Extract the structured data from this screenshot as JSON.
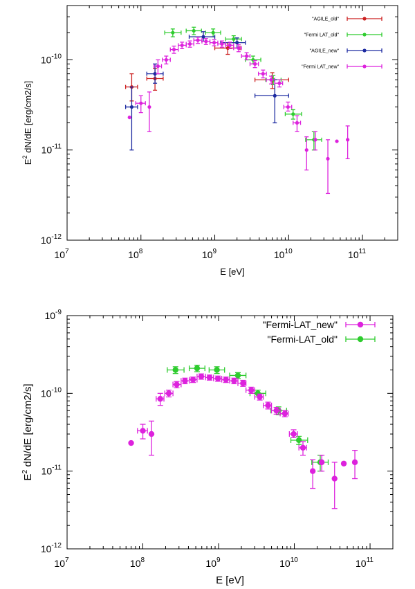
{
  "chart_data": [
    {
      "type": "scatter",
      "xscale": "log",
      "yscale": "log",
      "xlim": [
        10000000.0,
        300000000000.0
      ],
      "ylim": [
        1e-12,
        4e-10
      ],
      "xlabel": "E [eV]",
      "ylabel_base": "E",
      "ylabel_sup": "2",
      "ylabel_rest": " dN/dE [erg/cm2/s]",
      "xticks": [
        {
          "value": 10000000.0,
          "base": "10",
          "exp": "7"
        },
        {
          "value": 100000000.0,
          "base": "10",
          "exp": "8"
        },
        {
          "value": 1000000000.0,
          "base": "10",
          "exp": "9"
        },
        {
          "value": 10000000000.0,
          "base": "10",
          "exp": "10"
        },
        {
          "value": 100000000000.0,
          "base": "10",
          "exp": "11"
        }
      ],
      "yticks": [
        {
          "value": 1e-12,
          "base": "10",
          "exp": "-12"
        },
        {
          "value": 1e-11,
          "base": "10",
          "exp": "-11"
        },
        {
          "value": 1e-10,
          "base": "10",
          "exp": "-10"
        }
      ],
      "legend_position": "top-right",
      "series": [
        {
          "name": "\"AGILE_old\"",
          "color": "#cc2020",
          "points": [
            {
              "x": 75000000.0,
              "y": 5e-11,
              "xlo": 62000000.0,
              "xhi": 90000000.0,
              "ylo": 3.5e-11,
              "yhi": 7e-11
            },
            {
              "x": 155000000.0,
              "y": 6.2e-11,
              "xlo": 120000000.0,
              "xhi": 200000000.0,
              "ylo": 4.6e-11,
              "yhi": 8e-11
            },
            {
              "x": 1500000000.0,
              "y": 1.35e-10,
              "xlo": 1000000000.0,
              "xhi": 2200000000.0,
              "ylo": 1.15e-10,
              "yhi": 1.55e-10
            },
            {
              "x": 6000000000.0,
              "y": 6e-11,
              "xlo": 3500000000.0,
              "xhi": 10000000000.0,
              "ylo": 4.8e-11,
              "yhi": 7.2e-11
            }
          ]
        },
        {
          "name": "\"Fermi LAT_old\"",
          "color": "#2ecc2e",
          "points": [
            {
              "x": 270000000.0,
              "y": 2e-10,
              "xlo": 210000000.0,
              "xhi": 350000000.0,
              "ylo": 1.8e-10,
              "yhi": 2.2e-10
            },
            {
              "x": 520000000.0,
              "y": 2.1e-10,
              "xlo": 410000000.0,
              "xhi": 660000000.0,
              "ylo": 1.9e-10,
              "yhi": 2.3e-10
            },
            {
              "x": 950000000.0,
              "y": 2e-10,
              "xlo": 750000000.0,
              "xhi": 1200000000.0,
              "ylo": 1.8e-10,
              "yhi": 2.2e-10
            },
            {
              "x": 1800000000.0,
              "y": 1.7e-10,
              "xlo": 1400000000.0,
              "xhi": 2300000000.0,
              "ylo": 1.55e-10,
              "yhi": 1.85e-10
            },
            {
              "x": 3300000000.0,
              "y": 1e-10,
              "xlo": 2600000000.0,
              "xhi": 4200000000.0,
              "ylo": 9e-11,
              "yhi": 1.1e-10
            },
            {
              "x": 6200000000.0,
              "y": 6e-11,
              "xlo": 4900000000.0,
              "xhi": 7900000000.0,
              "ylo": 5.3e-11,
              "yhi": 6.7e-11
            },
            {
              "x": 11500000000.0,
              "y": 2.5e-11,
              "xlo": 9000000000.0,
              "xhi": 15000000000.0,
              "ylo": 2.2e-11,
              "yhi": 2.8e-11
            },
            {
              "x": 22000000000.0,
              "y": 1.3e-11,
              "xlo": 17000000000.0,
              "xhi": 28000000000.0,
              "ylo": 1e-11,
              "yhi": 1.6e-11
            }
          ]
        },
        {
          "name": "\"AGILE_new\"",
          "color": "#1c2aa0",
          "points": [
            {
              "x": 75000000.0,
              "y": 3e-11,
              "xlo": 62000000.0,
              "xhi": 90000000.0,
              "ylo": 1e-11,
              "yhi": 5e-11
            },
            {
              "x": 155000000.0,
              "y": 7e-11,
              "xlo": 120000000.0,
              "xhi": 200000000.0,
              "ylo": 5.5e-11,
              "yhi": 9e-11
            },
            {
              "x": 700000000.0,
              "y": 1.8e-10,
              "xlo": 450000000.0,
              "xhi": 1000000000.0,
              "ylo": 1.6e-10,
              "yhi": 2.05e-10
            },
            {
              "x": 2000000000.0,
              "y": 1.55e-10,
              "xlo": 1200000000.0,
              "xhi": 2600000000.0,
              "ylo": 1.35e-10,
              "yhi": 1.75e-10
            },
            {
              "x": 6500000000.0,
              "y": 4e-11,
              "xlo": 3500000000.0,
              "xhi": 10000000000.0,
              "ylo": 2e-11,
              "yhi": 6e-11
            }
          ]
        },
        {
          "name": "\"Fermi LAT_new\"",
          "color": "#dd22dd",
          "points": [
            {
              "x": 70000000.0,
              "y": 2.3e-11
            },
            {
              "x": 100000000.0,
              "y": 3.3e-11,
              "xlo": 85000000.0,
              "xhi": 115000000.0,
              "ylo": 2.6e-11,
              "yhi": 4e-11
            },
            {
              "x": 130000000.0,
              "y": 3e-11,
              "ylo": 1.6e-11,
              "yhi": 4.4e-11
            },
            {
              "x": 170000000.0,
              "y": 8.5e-11,
              "xlo": 150000000.0,
              "xhi": 190000000.0,
              "ylo": 7e-11,
              "yhi": 1e-10
            },
            {
              "x": 220000000.0,
              "y": 1e-10,
              "xlo": 195000000.0,
              "xhi": 250000000.0,
              "ylo": 9e-11,
              "yhi": 1.1e-10
            },
            {
              "x": 280000000.0,
              "y": 1.3e-10,
              "xlo": 250000000.0,
              "xhi": 320000000.0,
              "ylo": 1.18e-10,
              "yhi": 1.42e-10
            },
            {
              "x": 360000000.0,
              "y": 1.45e-10,
              "xlo": 320000000.0,
              "xhi": 410000000.0,
              "ylo": 1.33e-10,
              "yhi": 1.57e-10
            },
            {
              "x": 460000000.0,
              "y": 1.5e-10,
              "xlo": 410000000.0,
              "xhi": 520000000.0,
              "ylo": 1.38e-10,
              "yhi": 1.62e-10
            },
            {
              "x": 590000000.0,
              "y": 1.65e-10,
              "xlo": 520000000.0,
              "xhi": 670000000.0,
              "ylo": 1.52e-10,
              "yhi": 1.78e-10
            },
            {
              "x": 760000000.0,
              "y": 1.6e-10,
              "xlo": 670000000.0,
              "xhi": 860000000.0,
              "ylo": 1.48e-10,
              "yhi": 1.72e-10
            },
            {
              "x": 980000000.0,
              "y": 1.55e-10,
              "xlo": 860000000.0,
              "xhi": 1100000000.0,
              "ylo": 1.43e-10,
              "yhi": 1.67e-10
            },
            {
              "x": 1250000000.0,
              "y": 1.5e-10,
              "xlo": 1100000000.0,
              "xhi": 1400000000.0,
              "ylo": 1.38e-10,
              "yhi": 1.62e-10
            },
            {
              "x": 1600000000.0,
              "y": 1.45e-10,
              "xlo": 1400000000.0,
              "xhi": 1800000000.0,
              "ylo": 1.33e-10,
              "yhi": 1.57e-10
            },
            {
              "x": 2100000000.0,
              "y": 1.35e-10,
              "xlo": 1800000000.0,
              "xhi": 2300000000.0,
              "ylo": 1.23e-10,
              "yhi": 1.47e-10
            },
            {
              "x": 2700000000.0,
              "y": 1.1e-10,
              "xlo": 2300000000.0,
              "xhi": 3000000000.0,
              "ylo": 1e-10,
              "yhi": 1.2e-10
            },
            {
              "x": 3500000000.0,
              "y": 9e-11,
              "xlo": 3000000000.0,
              "xhi": 3900000000.0,
              "ylo": 8.2e-11,
              "yhi": 9.8e-11
            },
            {
              "x": 4500000000.0,
              "y": 7e-11,
              "xlo": 3900000000.0,
              "xhi": 5000000000.0,
              "ylo": 6.3e-11,
              "yhi": 7.7e-11
            },
            {
              "x": 5800000000.0,
              "y": 6e-11,
              "xlo": 5000000000.0,
              "xhi": 6500000000.0,
              "ylo": 5.4e-11,
              "yhi": 6.6e-11
            },
            {
              "x": 7500000000.0,
              "y": 5.5e-11,
              "xlo": 6500000000.0,
              "xhi": 8300000000.0,
              "ylo": 5e-11,
              "yhi": 6e-11
            },
            {
              "x": 9800000000.0,
              "y": 3e-11,
              "xlo": 8600000000.0,
              "xhi": 11000000000.0,
              "ylo": 2.7e-11,
              "yhi": 3.4e-11
            },
            {
              "x": 13000000000.0,
              "y": 2e-11,
              "xlo": 11500000000.0,
              "xhi": 14500000000.0,
              "ylo": 1.6e-11,
              "yhi": 2.4e-11
            },
            {
              "x": 17500000000.0,
              "y": 1e-11,
              "ylo": 6e-12,
              "yhi": 1.4e-11
            },
            {
              "x": 23000000000.0,
              "y": 1.3e-11,
              "ylo": 1e-11,
              "yhi": 1.6e-11
            },
            {
              "x": 34000000000.0,
              "y": 8e-12,
              "ylo": 3.3e-12,
              "yhi": 1.3e-11
            },
            {
              "x": 45000000000.0,
              "y": 1.25e-11
            },
            {
              "x": 63000000000.0,
              "y": 1.3e-11,
              "ylo": 8e-12,
              "yhi": 1.85e-11
            }
          ]
        }
      ]
    },
    {
      "type": "scatter",
      "xscale": "log",
      "yscale": "log",
      "xlim": [
        10000000.0,
        200000000000.0
      ],
      "ylim": [
        1e-12,
        1e-09
      ],
      "xlabel": "E [eV]",
      "ylabel_base": "E",
      "ylabel_sup": "2",
      "ylabel_rest": " dN/dE [erg/cm2/s]",
      "xticks": [
        {
          "value": 10000000.0,
          "base": "10",
          "exp": "7"
        },
        {
          "value": 100000000.0,
          "base": "10",
          "exp": "8"
        },
        {
          "value": 1000000000.0,
          "base": "10",
          "exp": "9"
        },
        {
          "value": 10000000000.0,
          "base": "10",
          "exp": "10"
        },
        {
          "value": 100000000000.0,
          "base": "10",
          "exp": "11"
        }
      ],
      "yticks": [
        {
          "value": 1e-12,
          "base": "10",
          "exp": "-12"
        },
        {
          "value": 1e-11,
          "base": "10",
          "exp": "-11"
        },
        {
          "value": 1e-10,
          "base": "10",
          "exp": "-10"
        },
        {
          "value": 1e-09,
          "base": "10",
          "exp": "-9"
        }
      ],
      "legend_position": "top-right",
      "series": [
        {
          "name": "\"Fermi-LAT_new\"",
          "color": "#dd22dd",
          "points": [
            {
              "x": 70000000.0,
              "y": 2.3e-11
            },
            {
              "x": 100000000.0,
              "y": 3.3e-11,
              "xlo": 85000000.0,
              "xhi": 115000000.0,
              "ylo": 2.6e-11,
              "yhi": 4e-11
            },
            {
              "x": 130000000.0,
              "y": 3e-11,
              "ylo": 1.6e-11,
              "yhi": 4.4e-11
            },
            {
              "x": 170000000.0,
              "y": 8.5e-11,
              "xlo": 150000000.0,
              "xhi": 190000000.0,
              "ylo": 7e-11,
              "yhi": 1e-10
            },
            {
              "x": 220000000.0,
              "y": 1e-10,
              "xlo": 195000000.0,
              "xhi": 250000000.0,
              "ylo": 9e-11,
              "yhi": 1.1e-10
            },
            {
              "x": 280000000.0,
              "y": 1.3e-10,
              "xlo": 250000000.0,
              "xhi": 320000000.0,
              "ylo": 1.18e-10,
              "yhi": 1.42e-10
            },
            {
              "x": 360000000.0,
              "y": 1.45e-10,
              "xlo": 320000000.0,
              "xhi": 410000000.0,
              "ylo": 1.33e-10,
              "yhi": 1.57e-10
            },
            {
              "x": 460000000.0,
              "y": 1.5e-10,
              "xlo": 410000000.0,
              "xhi": 520000000.0,
              "ylo": 1.38e-10,
              "yhi": 1.62e-10
            },
            {
              "x": 590000000.0,
              "y": 1.65e-10,
              "xlo": 520000000.0,
              "xhi": 670000000.0,
              "ylo": 1.52e-10,
              "yhi": 1.78e-10
            },
            {
              "x": 760000000.0,
              "y": 1.6e-10,
              "xlo": 670000000.0,
              "xhi": 860000000.0,
              "ylo": 1.48e-10,
              "yhi": 1.72e-10
            },
            {
              "x": 980000000.0,
              "y": 1.55e-10,
              "xlo": 860000000.0,
              "xhi": 1100000000.0,
              "ylo": 1.43e-10,
              "yhi": 1.67e-10
            },
            {
              "x": 1250000000.0,
              "y": 1.5e-10,
              "xlo": 1100000000.0,
              "xhi": 1400000000.0,
              "ylo": 1.38e-10,
              "yhi": 1.62e-10
            },
            {
              "x": 1600000000.0,
              "y": 1.45e-10,
              "xlo": 1400000000.0,
              "xhi": 1800000000.0,
              "ylo": 1.33e-10,
              "yhi": 1.57e-10
            },
            {
              "x": 2100000000.0,
              "y": 1.35e-10,
              "xlo": 1800000000.0,
              "xhi": 2300000000.0,
              "ylo": 1.23e-10,
              "yhi": 1.47e-10
            },
            {
              "x": 2700000000.0,
              "y": 1.1e-10,
              "xlo": 2300000000.0,
              "xhi": 3000000000.0,
              "ylo": 1e-10,
              "yhi": 1.2e-10
            },
            {
              "x": 3500000000.0,
              "y": 9e-11,
              "xlo": 3000000000.0,
              "xhi": 3900000000.0,
              "ylo": 8.2e-11,
              "yhi": 9.8e-11
            },
            {
              "x": 4500000000.0,
              "y": 7e-11,
              "xlo": 3900000000.0,
              "xhi": 5000000000.0,
              "ylo": 6.3e-11,
              "yhi": 7.7e-11
            },
            {
              "x": 5800000000.0,
              "y": 6e-11,
              "xlo": 5000000000.0,
              "xhi": 6500000000.0,
              "ylo": 5.4e-11,
              "yhi": 6.6e-11
            },
            {
              "x": 7500000000.0,
              "y": 5.5e-11,
              "xlo": 6500000000.0,
              "xhi": 8300000000.0,
              "ylo": 5e-11,
              "yhi": 6e-11
            },
            {
              "x": 9800000000.0,
              "y": 3e-11,
              "xlo": 8600000000.0,
              "xhi": 11000000000.0,
              "ylo": 2.7e-11,
              "yhi": 3.4e-11
            },
            {
              "x": 13000000000.0,
              "y": 2e-11,
              "xlo": 11500000000.0,
              "xhi": 14500000000.0,
              "ylo": 1.6e-11,
              "yhi": 2.4e-11
            },
            {
              "x": 17500000000.0,
              "y": 1e-11,
              "ylo": 6e-12,
              "yhi": 1.4e-11
            },
            {
              "x": 23000000000.0,
              "y": 1.3e-11,
              "ylo": 1e-11,
              "yhi": 1.6e-11
            },
            {
              "x": 34000000000.0,
              "y": 8e-12,
              "ylo": 3.3e-12,
              "yhi": 1.3e-11
            },
            {
              "x": 45000000000.0,
              "y": 1.25e-11
            },
            {
              "x": 63000000000.0,
              "y": 1.3e-11,
              "ylo": 8e-12,
              "yhi": 1.85e-11
            }
          ]
        },
        {
          "name": "\"Fermi-LAT_old\"",
          "color": "#2ecc2e",
          "points": [
            {
              "x": 270000000.0,
              "y": 2e-10,
              "xlo": 210000000.0,
              "xhi": 350000000.0,
              "ylo": 1.8e-10,
              "yhi": 2.2e-10
            },
            {
              "x": 520000000.0,
              "y": 2.1e-10,
              "xlo": 410000000.0,
              "xhi": 660000000.0,
              "ylo": 1.9e-10,
              "yhi": 2.3e-10
            },
            {
              "x": 950000000.0,
              "y": 2e-10,
              "xlo": 750000000.0,
              "xhi": 1200000000.0,
              "ylo": 1.8e-10,
              "yhi": 2.2e-10
            },
            {
              "x": 1800000000.0,
              "y": 1.7e-10,
              "xlo": 1400000000.0,
              "xhi": 2300000000.0,
              "ylo": 1.55e-10,
              "yhi": 1.85e-10
            },
            {
              "x": 3300000000.0,
              "y": 1e-10,
              "xlo": 2600000000.0,
              "xhi": 4200000000.0,
              "ylo": 9e-11,
              "yhi": 1.1e-10
            },
            {
              "x": 6200000000.0,
              "y": 6e-11,
              "xlo": 4900000000.0,
              "xhi": 7900000000.0,
              "ylo": 5.3e-11,
              "yhi": 6.7e-11
            },
            {
              "x": 11500000000.0,
              "y": 2.5e-11,
              "xlo": 9000000000.0,
              "xhi": 15000000000.0,
              "ylo": 2.2e-11,
              "yhi": 2.8e-11
            },
            {
              "x": 22000000000.0,
              "y": 1.3e-11,
              "xlo": 17000000000.0,
              "xhi": 28000000000.0,
              "ylo": 1e-11,
              "yhi": 1.6e-11
            }
          ]
        }
      ]
    }
  ]
}
